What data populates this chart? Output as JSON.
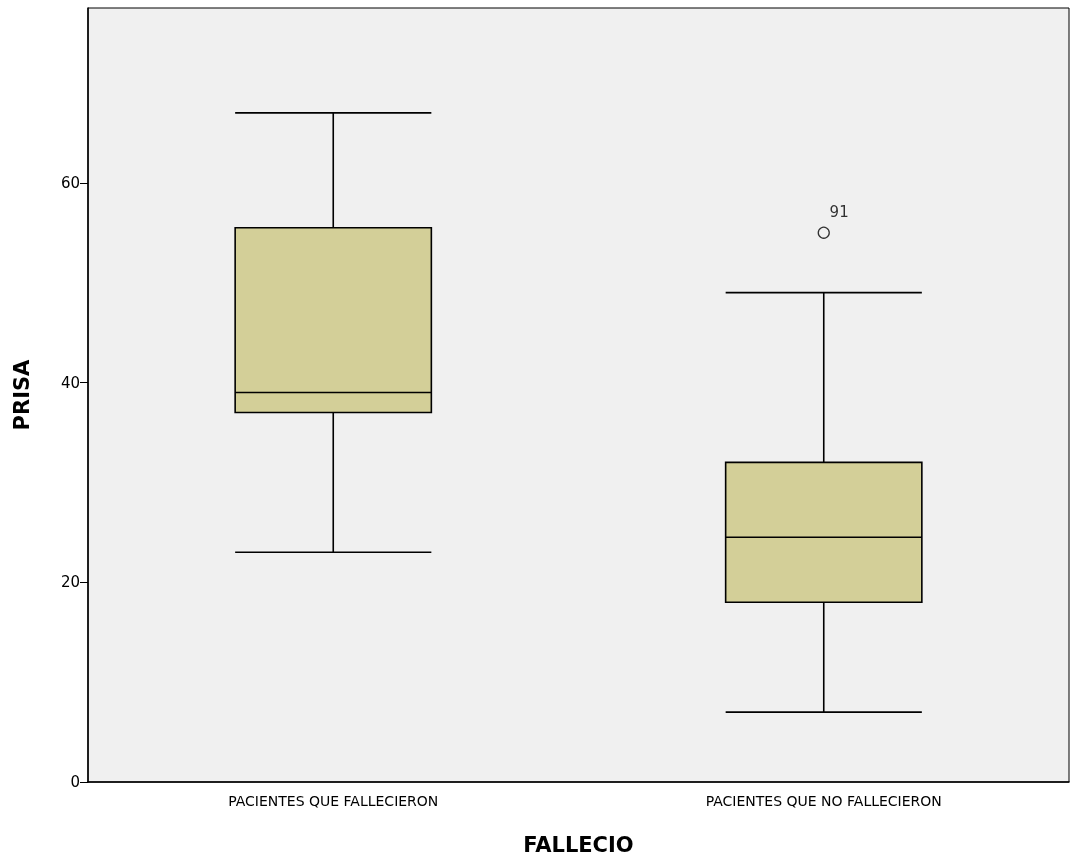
{
  "chart_data": {
    "type": "box",
    "xlabel": "FALLECIO",
    "ylabel": "PRISA",
    "categories": [
      "PACIENTES QUE FALLECIERON",
      "PACIENTES QUE NO FALLECIERON"
    ],
    "boxes": [
      {
        "low": 23,
        "q1": 37,
        "median": 39,
        "q3": 55.5,
        "high": 67
      },
      {
        "low": 7,
        "q1": 18,
        "median": 24.5,
        "q3": 32,
        "high": 49,
        "outliers": [
          55
        ]
      }
    ],
    "color": "#d3cf98",
    "ylim": [
      0,
      77.5
    ],
    "yticks": [
      0,
      20,
      40,
      60
    ],
    "grid": false,
    "annotations": [
      "91"
    ]
  }
}
